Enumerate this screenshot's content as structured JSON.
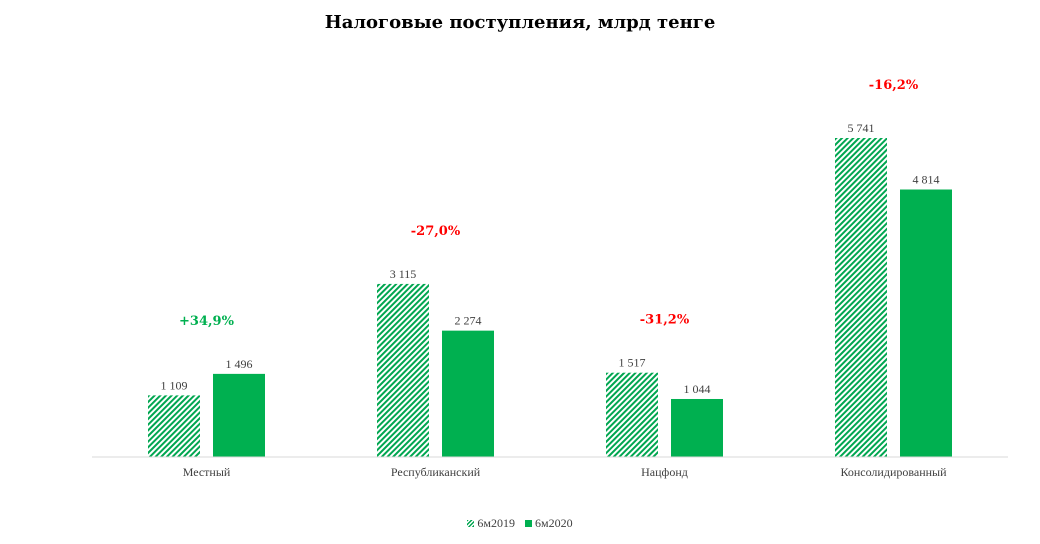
{
  "chart_data": {
    "type": "bar",
    "title": "Налоговые поступления, млрд тенге",
    "categories": [
      "Местный",
      "Республиканский",
      "Нацфонд",
      "Консолидированный"
    ],
    "series": [
      {
        "name": "6м2019",
        "values": [
          1109,
          3115,
          1517,
          5741
        ],
        "labels": [
          "1 109",
          "3 115",
          "1 517",
          "5 741"
        ],
        "fill": "hatched",
        "color": "#00a650"
      },
      {
        "name": "6м2020",
        "values": [
          1496,
          2274,
          1044,
          4814
        ],
        "labels": [
          "1 496",
          "2 274",
          "1 044",
          "4 814"
        ],
        "fill": "solid",
        "color": "#00b050"
      }
    ],
    "changes": [
      {
        "text": "+34,9%",
        "color": "#00b050"
      },
      {
        "text": "-27,0%",
        "color": "#ff0000"
      },
      {
        "text": "-31,2%",
        "color": "#ff0000"
      },
      {
        "text": "-16,2%",
        "color": "#ff0000"
      }
    ],
    "ylim": [
      0,
      5741
    ],
    "grid": false,
    "legend_position": "bottom",
    "xlabel": "",
    "ylabel": ""
  }
}
